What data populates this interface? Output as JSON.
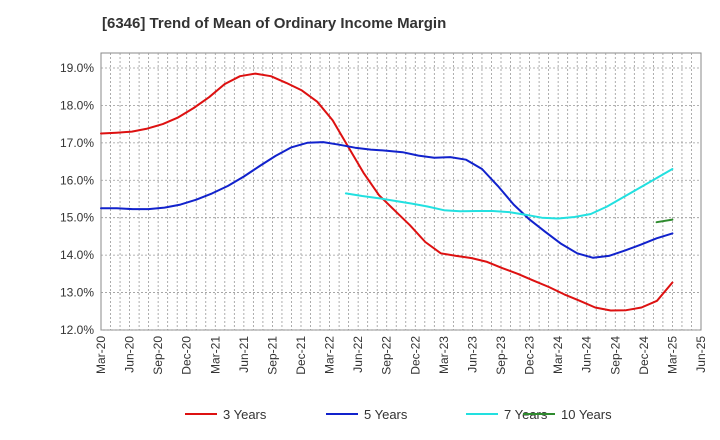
{
  "chart_data": {
    "type": "line",
    "title": "[6346]  Trend of Mean of Ordinary Income Margin",
    "xlabel": "",
    "ylabel": "",
    "y_tick_labels": [
      "12.0%",
      "13.0%",
      "14.0%",
      "15.0%",
      "16.0%",
      "17.0%",
      "18.0%",
      "19.0%"
    ],
    "y_ticks": [
      12,
      13,
      14,
      15,
      16,
      17,
      18,
      19
    ],
    "ylim": [
      12.0,
      19.4
    ],
    "x_tick_labels": [
      "Mar-20",
      "Jun-20",
      "Sep-20",
      "Dec-20",
      "Mar-21",
      "Jun-21",
      "Sep-21",
      "Dec-21",
      "Mar-22",
      "Jun-22",
      "Sep-22",
      "Dec-22",
      "Mar-23",
      "Jun-23",
      "Sep-23",
      "Dec-23",
      "Mar-24",
      "Jun-24",
      "Sep-24",
      "Dec-24",
      "Mar-25",
      "Jun-25"
    ],
    "grid": true,
    "legend_position": "bottom",
    "series": [
      {
        "name": "3 Years",
        "color": "#dd1111",
        "values": [
          17.25,
          17.27,
          17.3,
          17.38,
          17.5,
          17.68,
          17.93,
          18.22,
          18.57,
          18.78,
          18.85,
          18.78,
          18.6,
          18.4,
          18.1,
          17.6,
          16.9,
          16.2,
          15.6,
          15.2,
          14.8,
          14.35,
          14.05,
          13.98,
          13.92,
          13.82,
          13.65,
          13.5,
          13.32,
          13.15,
          12.95,
          12.78,
          12.6,
          12.52,
          12.53,
          12.6,
          12.78,
          13.27
        ]
      },
      {
        "name": "5 Years",
        "color": "#1122cc",
        "values": [
          15.25,
          15.25,
          15.23,
          15.23,
          15.27,
          15.35,
          15.48,
          15.65,
          15.85,
          16.1,
          16.38,
          16.65,
          16.88,
          17.0,
          17.02,
          16.95,
          16.87,
          16.82,
          16.79,
          16.75,
          16.66,
          16.6,
          16.62,
          16.55,
          16.3,
          15.85,
          15.35,
          14.95,
          14.62,
          14.3,
          14.05,
          13.93,
          13.98,
          14.12,
          14.28,
          14.45,
          14.58
        ]
      },
      {
        "name": "7 Years",
        "color": "#22e0e0",
        "values": [
          null,
          null,
          null,
          null,
          null,
          null,
          null,
          null,
          null,
          null,
          null,
          null,
          null,
          null,
          null,
          15.65,
          15.58,
          15.52,
          15.45,
          15.38,
          15.3,
          15.2,
          15.17,
          15.18,
          15.18,
          15.15,
          15.08,
          15.0,
          14.98,
          15.02,
          15.1,
          15.3,
          15.55,
          15.8,
          16.05,
          16.3
        ]
      },
      {
        "name": "10 Years",
        "color": "#2e8b2e",
        "values": [
          null,
          null,
          null,
          null,
          null,
          null,
          null,
          null,
          null,
          null,
          null,
          null,
          null,
          null,
          null,
          null,
          null,
          null,
          null,
          null,
          null,
          null,
          null,
          null,
          null,
          null,
          null,
          null,
          null,
          null,
          null,
          null,
          null,
          null,
          null,
          14.88,
          14.95
        ]
      }
    ]
  }
}
